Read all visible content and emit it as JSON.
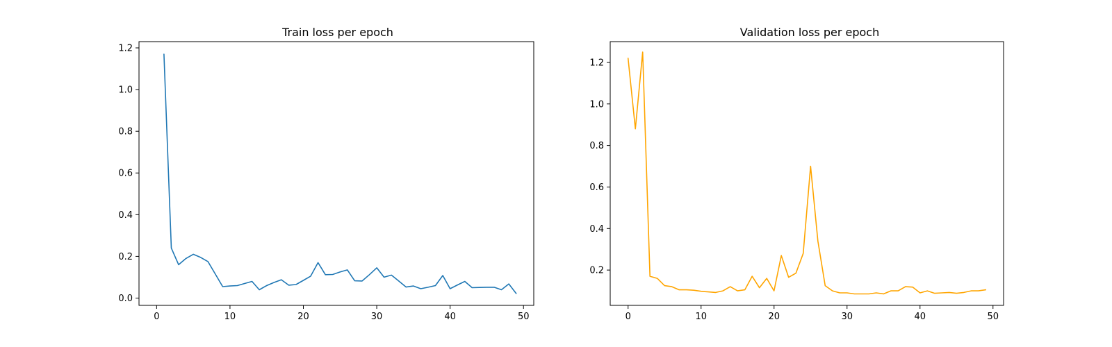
{
  "chart_data": [
    {
      "type": "line",
      "title": "Train loss per epoch",
      "xlabel": "",
      "ylabel": "",
      "xlim": [
        -2.4,
        51.4
      ],
      "ylim": [
        -0.035,
        1.23
      ],
      "xticks": [
        0,
        10,
        20,
        30,
        40,
        50
      ],
      "xtick_labels": [
        "0",
        "10",
        "20",
        "30",
        "40",
        "50"
      ],
      "yticks": [
        0.0,
        0.2,
        0.4,
        0.6,
        0.8,
        1.0,
        1.2
      ],
      "ytick_labels": [
        "0.0",
        "0.2",
        "0.4",
        "0.6",
        "0.8",
        "1.0",
        "1.2"
      ],
      "grid": false,
      "series": [
        {
          "color": "#1f77b4",
          "x": [
            1,
            2,
            3,
            4,
            5,
            6,
            7,
            8,
            9,
            10,
            11,
            12,
            13,
            14,
            15,
            16,
            17,
            18,
            19,
            20,
            21,
            22,
            23,
            24,
            25,
            26,
            27,
            28,
            29,
            30,
            31,
            32,
            33,
            34,
            35,
            36,
            37,
            38,
            39,
            40,
            41,
            42,
            43,
            44,
            45,
            46,
            47,
            48,
            49
          ],
          "values": [
            1.17,
            0.24,
            0.16,
            0.19,
            0.21,
            0.195,
            0.175,
            0.115,
            0.055,
            0.058,
            0.06,
            0.07,
            0.08,
            0.04,
            0.06,
            0.075,
            0.088,
            0.062,
            0.065,
            0.085,
            0.105,
            0.17,
            0.112,
            0.113,
            0.125,
            0.135,
            0.083,
            0.082,
            0.112,
            0.145,
            0.1,
            0.11,
            0.082,
            0.053,
            0.058,
            0.045,
            0.052,
            0.06,
            0.108,
            0.045,
            0.063,
            0.08,
            0.05,
            0.051,
            0.052,
            0.052,
            0.04,
            0.068,
            0.022
          ]
        }
      ]
    },
    {
      "type": "line",
      "title": "Validation loss per epoch",
      "xlabel": "",
      "ylabel": "",
      "xlim": [
        -2.45,
        51.45
      ],
      "ylim": [
        0.03,
        1.3
      ],
      "xticks": [
        0,
        10,
        20,
        30,
        40,
        50
      ],
      "xtick_labels": [
        "0",
        "10",
        "20",
        "30",
        "40",
        "50"
      ],
      "yticks": [
        0.2,
        0.4,
        0.6,
        0.8,
        1.0,
        1.2
      ],
      "ytick_labels": [
        "0.2",
        "0.4",
        "0.6",
        "0.8",
        "1.0",
        "1.2"
      ],
      "grid": false,
      "series": [
        {
          "color": "#ffa500",
          "x": [
            0,
            1,
            2,
            3,
            4,
            5,
            6,
            7,
            8,
            9,
            10,
            11,
            12,
            13,
            14,
            15,
            16,
            17,
            18,
            19,
            20,
            21,
            22,
            23,
            24,
            25,
            26,
            27,
            28,
            29,
            30,
            31,
            32,
            33,
            34,
            35,
            36,
            37,
            38,
            39,
            40,
            41,
            42,
            43,
            44,
            45,
            46,
            47,
            48,
            49
          ],
          "values": [
            1.22,
            0.88,
            1.25,
            0.17,
            0.16,
            0.125,
            0.12,
            0.105,
            0.105,
            0.103,
            0.098,
            0.095,
            0.092,
            0.1,
            0.12,
            0.1,
            0.105,
            0.17,
            0.115,
            0.16,
            0.1,
            0.27,
            0.165,
            0.185,
            0.28,
            0.7,
            0.34,
            0.125,
            0.1,
            0.09,
            0.09,
            0.085,
            0.085,
            0.085,
            0.09,
            0.085,
            0.1,
            0.1,
            0.12,
            0.118,
            0.09,
            0.1,
            0.088,
            0.09,
            0.092,
            0.088,
            0.092,
            0.1,
            0.1,
            0.105
          ]
        }
      ]
    }
  ]
}
